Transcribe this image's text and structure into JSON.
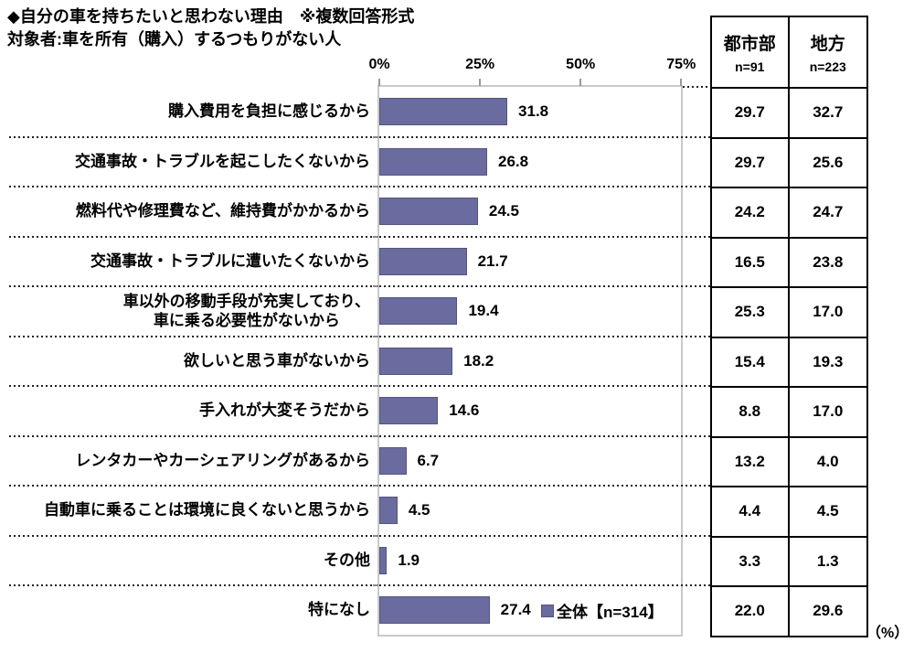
{
  "title": "◆自分の車を持ちたいと思わない理由　※複数回答形式",
  "subtitle": "対象者:車を所有（購入）するつもりがない人",
  "axis": {
    "ticks": [
      "0%",
      "25%",
      "50%",
      "75%"
    ]
  },
  "legend": {
    "label": "全体【n=314】"
  },
  "unit_label": "（%）",
  "table_header": {
    "col1": {
      "name": "都市部",
      "n": "n=91"
    },
    "col2": {
      "name": "地方",
      "n": "n=223"
    }
  },
  "rows": [
    {
      "label": "購入費用を負担に感じるから",
      "label2": "",
      "value": 31.8,
      "value_text": "31.8",
      "urban": "29.7",
      "rural": "32.7"
    },
    {
      "label": "交通事故・トラブルを起こしたくないから",
      "label2": "",
      "value": 26.8,
      "value_text": "26.8",
      "urban": "29.7",
      "rural": "25.6"
    },
    {
      "label": "燃料代や修理費など、維持費がかかるから",
      "label2": "",
      "value": 24.5,
      "value_text": "24.5",
      "urban": "24.2",
      "rural": "24.7"
    },
    {
      "label": "交通事故・トラブルに遭いたくないから",
      "label2": "",
      "value": 21.7,
      "value_text": "21.7",
      "urban": "16.5",
      "rural": "23.8"
    },
    {
      "label": "車以外の移動手段が充実しており、",
      "label2": "車に乗る必要性がないから",
      "value": 19.4,
      "value_text": "19.4",
      "urban": "25.3",
      "rural": "17.0"
    },
    {
      "label": "欲しいと思う車がないから",
      "label2": "",
      "value": 18.2,
      "value_text": "18.2",
      "urban": "15.4",
      "rural": "19.3"
    },
    {
      "label": "手入れが大変そうだから",
      "label2": "",
      "value": 14.6,
      "value_text": "14.6",
      "urban": "8.8",
      "rural": "17.0"
    },
    {
      "label": "レンタカーやカーシェアリングがあるから",
      "label2": "",
      "value": 6.7,
      "value_text": "6.7",
      "urban": "13.2",
      "rural": "4.0"
    },
    {
      "label": "自動車に乗ることは環境に良くないと思うから",
      "label2": "",
      "value": 4.5,
      "value_text": "4.5",
      "urban": "4.4",
      "rural": "4.5"
    },
    {
      "label": "その他",
      "label2": "",
      "value": 1.9,
      "value_text": "1.9",
      "urban": "3.3",
      "rural": "1.3"
    },
    {
      "label": "特になし",
      "label2": "",
      "value": 27.4,
      "value_text": "27.4",
      "urban": "22.0",
      "rural": "29.6"
    }
  ],
  "chart_data": {
    "type": "bar",
    "orientation": "horizontal",
    "title": "◆自分の車を持ちたいと思わない理由　※複数回答形式",
    "subtitle": "対象者:車を所有（購入）するつもりがない人",
    "categories": [
      "購入費用を負担に感じるから",
      "交通事故・トラブルを起こしたくないから",
      "燃料代や修理費など、維持費がかかるから",
      "交通事故・トラブルに遭いたくないから",
      "車以外の移動手段が充実しており、車に乗る必要性がないから",
      "欲しいと思う車がないから",
      "手入れが大変そうだから",
      "レンタカーやカーシェアリングがあるから",
      "自動車に乗ることは環境に良くないと思うから",
      "その他",
      "特になし"
    ],
    "series": [
      {
        "name": "全体【n=314】",
        "values": [
          31.8,
          26.8,
          24.5,
          21.7,
          19.4,
          18.2,
          14.6,
          6.7,
          4.5,
          1.9,
          27.4
        ]
      },
      {
        "name": "都市部（n=91）",
        "values": [
          29.7,
          29.7,
          24.2,
          16.5,
          25.3,
          15.4,
          8.8,
          13.2,
          4.4,
          3.3,
          22.0
        ]
      },
      {
        "name": "地方（n=223）",
        "values": [
          32.7,
          25.6,
          24.7,
          23.8,
          17.0,
          19.3,
          17.0,
          4.0,
          4.5,
          1.3,
          29.6
        ]
      }
    ],
    "x_ticks": [
      "0%",
      "25%",
      "50%",
      "75%"
    ],
    "xlim": [
      0,
      75
    ],
    "unit": "%",
    "bar_color": "#6A6B9E",
    "grid": "dotted-row-separators",
    "legend_position": "inside-bottom-right"
  }
}
